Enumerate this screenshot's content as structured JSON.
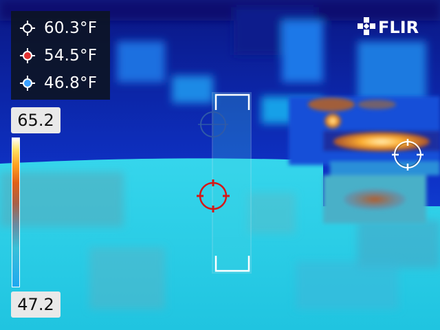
{
  "brand": {
    "logo_text": "FLIR",
    "logo_icon": "flir-snowflake-icon"
  },
  "readouts": [
    {
      "marker": "spot-crosshair-white-icon",
      "color": "#ffffff",
      "value": "60.3°F"
    },
    {
      "marker": "spot-crosshair-red-icon",
      "color": "#e03030",
      "value": "54.5°F"
    },
    {
      "marker": "spot-crosshair-blue-icon",
      "color": "#3aa0ff",
      "value": "46.8°F"
    }
  ],
  "scale": {
    "max": "65.2",
    "min": "47.2",
    "palette": "iron"
  },
  "colors": {
    "sky_dark": "#0a1a8c",
    "cyan": "#2ee0e8",
    "hot_orange": "#e07818",
    "hot_white": "#fff6c0",
    "spot_red": "#d81818",
    "spot_blue": "#3a5fa8"
  }
}
